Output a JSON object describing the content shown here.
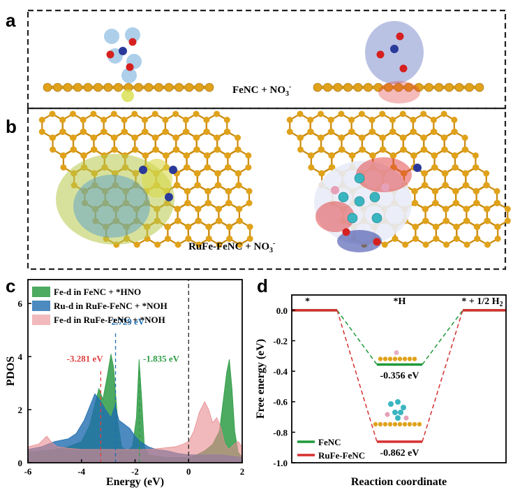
{
  "panel_a": {
    "letter": "a",
    "label": "FeNC + NO",
    "label_sub": "3",
    "label_sup": "-"
  },
  "panel_b": {
    "letter": "b",
    "label": "RuFe-FeNC + NO",
    "label_sub": "3",
    "label_sup": "-"
  },
  "colors": {
    "fe_fenc": "#2e9b45",
    "ru_rufe": "#1f6db0",
    "fe_rufe": "#e88a8e",
    "fenc_line": "#1e9a3a",
    "rufe_line": "#d63030",
    "atom_c": "#e0a21a",
    "atom_n": "#2a3a9a",
    "atom_o": "#d62020",
    "atom_ru": "#3ab5c0"
  },
  "chart_data": [
    {
      "type": "area",
      "panel": "c",
      "letter": "c",
      "xlabel": "Energy (eV)",
      "ylabel": "PDOS",
      "xlim": [
        -6,
        2
      ],
      "ylim": [
        0,
        6.9
      ],
      "xticks": [
        -6,
        -4,
        -2,
        0,
        2
      ],
      "yticks": [
        0,
        2,
        4,
        6
      ],
      "legend_position": "top-left",
      "series": [
        {
          "name": "Fe-d in FeNC + *HNO",
          "color": "#2e9b45",
          "x": [
            -6,
            -5.5,
            -5,
            -4.5,
            -4,
            -3.7,
            -3.5,
            -3.35,
            -3.2,
            -3.05,
            -2.9,
            -2.8,
            -2.65,
            -2.5,
            -2.3,
            -2.1,
            -1.95,
            -1.85,
            -1.75,
            -1.65,
            -1.5,
            -1.2,
            -0.8,
            -0.4,
            0,
            0.3,
            0.6,
            0.9,
            1.15,
            1.3,
            1.42,
            1.52,
            1.62,
            1.72,
            1.85,
            2
          ],
          "y": [
            0.4,
            0.45,
            0.5,
            0.6,
            0.8,
            1.4,
            2.2,
            2.8,
            2.4,
            3.2,
            4.1,
            3.6,
            1.6,
            0.6,
            0.45,
            0.6,
            1.7,
            3.9,
            2.4,
            0.6,
            0.3,
            0.25,
            0.2,
            0.2,
            0.2,
            0.3,
            0.45,
            0.7,
            1.2,
            2.4,
            3.4,
            3.9,
            2.8,
            1.2,
            0.4,
            0.2
          ]
        },
        {
          "name": "Ru-d in RuFe-FeNC + *NOH",
          "color": "#1f6db0",
          "x": [
            -6,
            -5.5,
            -5,
            -4.5,
            -4.2,
            -3.9,
            -3.7,
            -3.5,
            -3.3,
            -3.1,
            -2.9,
            -2.75,
            -2.6,
            -2.4,
            -2.2,
            -2,
            -1.8,
            -1.5,
            -1.2,
            -0.8,
            -0.4,
            0,
            0.4,
            0.8,
            1.2,
            1.6,
            2
          ],
          "y": [
            0.5,
            0.6,
            0.8,
            0.9,
            1.1,
            1.6,
            2.1,
            2.6,
            2.35,
            2.0,
            1.7,
            2.15,
            1.6,
            1.45,
            1.3,
            1.0,
            0.8,
            0.6,
            0.5,
            0.45,
            0.35,
            0.3,
            0.3,
            0.3,
            0.3,
            0.25,
            0.2
          ]
        },
        {
          "name": "Fe-d in RuFe-FeNC + *NOH",
          "color": "#e88a8e",
          "x": [
            -6,
            -5.6,
            -5.3,
            -5.1,
            -4.9,
            -4.5,
            -4,
            -3.5,
            -3,
            -2.5,
            -2,
            -1.5,
            -1,
            -0.5,
            -0.2,
            0,
            0.2,
            0.4,
            0.6,
            0.75,
            0.9,
            1.05,
            1.2,
            1.35,
            1.5,
            1.7,
            1.85,
            2
          ],
          "y": [
            0.6,
            0.7,
            1.0,
            0.75,
            0.6,
            0.55,
            0.5,
            0.5,
            0.5,
            0.5,
            0.5,
            0.5,
            0.55,
            0.6,
            0.7,
            0.8,
            1.2,
            1.9,
            2.3,
            2.0,
            1.5,
            1.7,
            1.35,
            0.7,
            0.5,
            0.7,
            0.8,
            0.6
          ]
        }
      ],
      "annotations": [
        {
          "text": "-3.281 eV",
          "x": -3.281,
          "color": "#e04040"
        },
        {
          "text": "-2.729 eV",
          "x": -2.729,
          "color": "#1f6db0"
        },
        {
          "text": "-1.835 eV",
          "x": -1.835,
          "color": "#2e9b45"
        }
      ],
      "fermi_level": 0
    },
    {
      "type": "line",
      "panel": "d",
      "letter": "d",
      "xlabel": "Reaction coordinate",
      "ylabel": "Free energy (eV)",
      "ylim": [
        -1.0,
        0.1
      ],
      "yticks": [
        "0.0",
        "-0.2",
        "-0.4",
        "-0.6",
        "-0.8",
        "-1.0"
      ],
      "legend_position": "bottom-left",
      "states": [
        "*",
        "*H",
        "* + 1/2 H"
      ],
      "state_last_sub": "2",
      "series": [
        {
          "name": "FeNC",
          "color": "#1e9a3a",
          "values": [
            0,
            -0.356,
            0
          ],
          "label": "-0.356 eV"
        },
        {
          "name": "RuFe-FeNC",
          "color": "#d63030",
          "values": [
            0,
            -0.862,
            0
          ],
          "label": "-0.862 eV"
        }
      ]
    }
  ]
}
